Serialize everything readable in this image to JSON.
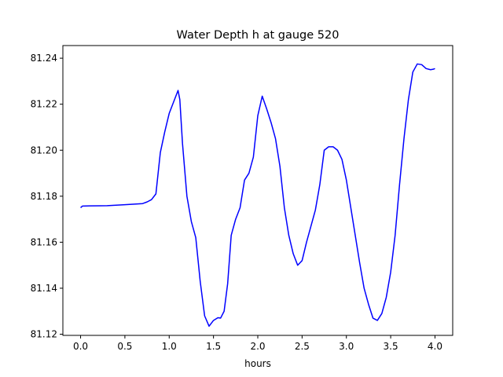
{
  "chart_data": {
    "type": "line",
    "title": "Water Depth h at gauge 520",
    "xlabel": "hours",
    "ylabel": "",
    "xlim": [
      -0.2,
      4.2
    ],
    "ylim": [
      81.1195,
      81.2455
    ],
    "xticks": [
      0.0,
      0.5,
      1.0,
      1.5,
      2.0,
      2.5,
      3.0,
      3.5,
      4.0
    ],
    "xtick_labels": [
      "0.0",
      "0.5",
      "1.0",
      "1.5",
      "2.0",
      "2.5",
      "3.0",
      "3.5",
      "4.0"
    ],
    "yticks": [
      81.12,
      81.14,
      81.16,
      81.18,
      81.2,
      81.22,
      81.24
    ],
    "ytick_labels": [
      "81.12",
      "81.14",
      "81.16",
      "81.18",
      "81.20",
      "81.22",
      "81.24"
    ],
    "grid": false,
    "series": [
      {
        "color": "#0000ff",
        "x": [
          0.0,
          0.02,
          0.1,
          0.3,
          0.5,
          0.7,
          0.75,
          0.8,
          0.85,
          0.9,
          0.95,
          1.0,
          1.05,
          1.1,
          1.12,
          1.15,
          1.2,
          1.25,
          1.3,
          1.35,
          1.4,
          1.45,
          1.5,
          1.55,
          1.58,
          1.62,
          1.66,
          1.7,
          1.75,
          1.8,
          1.85,
          1.9,
          1.95,
          2.0,
          2.05,
          2.1,
          2.15,
          2.2,
          2.25,
          2.3,
          2.35,
          2.4,
          2.45,
          2.5,
          2.55,
          2.6,
          2.65,
          2.7,
          2.75,
          2.8,
          2.85,
          2.9,
          2.95,
          3.0,
          3.05,
          3.1,
          3.15,
          3.2,
          3.25,
          3.3,
          3.35,
          3.4,
          3.45,
          3.5,
          3.55,
          3.6,
          3.65,
          3.7,
          3.75,
          3.8,
          3.85,
          3.9,
          3.95,
          3.98,
          4.0
        ],
        "y": [
          81.175,
          81.1757,
          81.1758,
          81.1759,
          81.1763,
          81.1768,
          81.1775,
          81.1785,
          81.181,
          81.199,
          81.208,
          81.216,
          81.221,
          81.226,
          81.222,
          81.203,
          81.18,
          81.169,
          81.162,
          81.143,
          81.128,
          81.1235,
          81.126,
          81.1272,
          81.127,
          81.13,
          81.142,
          81.163,
          81.17,
          81.175,
          81.187,
          81.19,
          81.197,
          81.215,
          81.2235,
          81.218,
          81.212,
          81.205,
          81.193,
          81.175,
          81.163,
          81.155,
          81.15,
          81.152,
          81.16,
          81.167,
          81.174,
          81.185,
          81.2,
          81.2015,
          81.2015,
          81.2,
          81.196,
          81.187,
          81.175,
          81.163,
          81.151,
          81.14,
          81.133,
          81.127,
          81.126,
          81.129,
          81.136,
          81.147,
          81.163,
          81.185,
          81.205,
          81.222,
          81.234,
          81.2375,
          81.2372,
          81.2355,
          81.235,
          81.2352,
          81.2355
        ]
      }
    ]
  }
}
